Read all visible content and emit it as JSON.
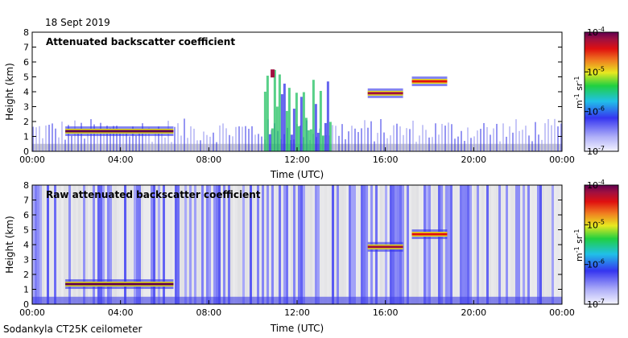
{
  "header": {
    "date": "18 Sept 2019"
  },
  "footer": {
    "instrument": "Sodankyla CT25K ceilometer"
  },
  "colorbar": {
    "unit_main": "m",
    "unit_exp1": "-1",
    "unit_sr": "sr",
    "unit_exp2": "-1",
    "ticks": [
      {
        "base": "10",
        "exp": "-4"
      },
      {
        "base": "10",
        "exp": "-5"
      },
      {
        "base": "10",
        "exp": "-6"
      },
      {
        "base": "10",
        "exp": "-7"
      }
    ],
    "colors": [
      "#f8f8ff",
      "#a0a0f8",
      "#3030f0",
      "#20c0e0",
      "#20d040",
      "#e8e820",
      "#f08020",
      "#e01010",
      "#a01040",
      "#600050"
    ],
    "log_range": [
      -7,
      -4
    ]
  },
  "chart_data": [
    {
      "type": "heatmap",
      "title": "Attenuated backscatter coefficient",
      "xlabel": "Time (UTC)",
      "ylabel": "Height (km)",
      "xticks": [
        "00:00",
        "04:00",
        "08:00",
        "12:00",
        "16:00",
        "20:00",
        "00:00"
      ],
      "yticks": [
        "0",
        "1",
        "2",
        "3",
        "4",
        "5",
        "6",
        "7",
        "8"
      ],
      "xlim": [
        0,
        24
      ],
      "ylim": [
        0,
        8
      ],
      "features": [
        {
          "feature": "boundary layer aerosol",
          "t_start": 0,
          "t_end": 24,
          "height_top": 0.5,
          "level": -6.6
        },
        {
          "feature": "cloud base layer",
          "t_start": 1.5,
          "t_end": 6.4,
          "height": 1.35,
          "level": -4.3
        },
        {
          "feature": "cloud layer",
          "t_start": 15.2,
          "t_end": 16.8,
          "height": 3.9,
          "level": -4.5
        },
        {
          "feature": "cloud layer",
          "t_start": 17.2,
          "t_end": 18.8,
          "height": 4.7,
          "level": -4.8
        },
        {
          "feature": "convective cloud",
          "t_start": 10.5,
          "t_end": 13.5,
          "height_top": 5.5,
          "level": -5.0
        }
      ]
    },
    {
      "type": "heatmap",
      "title": "Raw attenuated backscatter coefficient",
      "xlabel": "Time (UTC)",
      "ylabel": "Height (km)",
      "xticks": [
        "00:00",
        "04:00",
        "08:00",
        "12:00",
        "16:00",
        "20:00",
        "00:00"
      ],
      "yticks": [
        "0",
        "1",
        "2",
        "3",
        "4",
        "5",
        "6",
        "7",
        "8"
      ],
      "xlim": [
        0,
        24
      ],
      "ylim": [
        0,
        8
      ],
      "features": [
        {
          "feature": "noise columns",
          "t_start": 0,
          "t_end": 24,
          "height_top": 8,
          "level": -6.5
        },
        {
          "feature": "cloud base layer",
          "t_start": 1.5,
          "t_end": 6.4,
          "height": 1.35,
          "level": -4.3
        },
        {
          "feature": "cloud layer",
          "t_start": 15.2,
          "t_end": 16.8,
          "height": 3.85,
          "level": -4.5
        },
        {
          "feature": "cloud layer",
          "t_start": 17.2,
          "t_end": 18.8,
          "height": 4.7,
          "level": -4.8
        }
      ]
    }
  ]
}
